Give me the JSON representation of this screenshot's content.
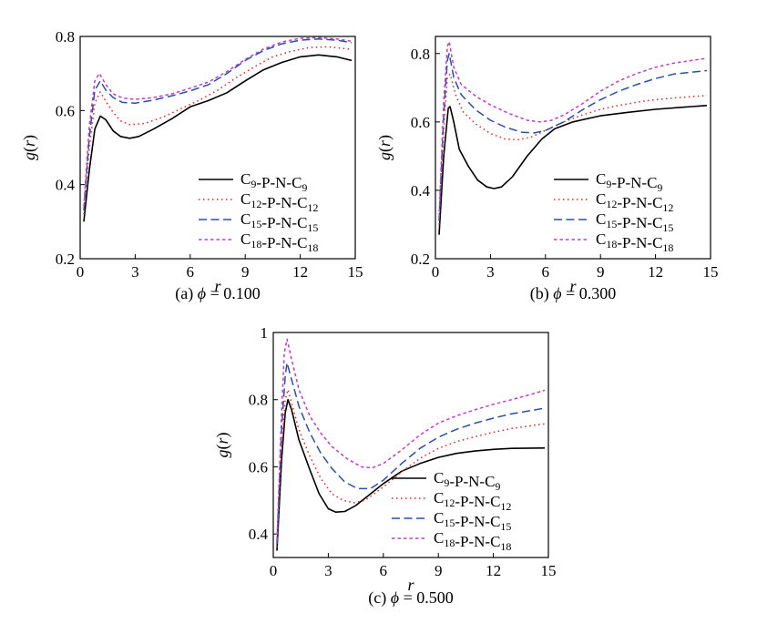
{
  "colors": {
    "C9": "#000000",
    "C12": "#e8231a",
    "C15": "#2a4fa8",
    "C18": "#c23cc8"
  },
  "chart_data": [
    {
      "type": "line",
      "caption": "(a) ϕ = 0.100",
      "xlabel": "r",
      "ylabel": "g(r)",
      "xlim": [
        0,
        15
      ],
      "ylim": [
        0.2,
        0.8
      ],
      "xticks": [
        0,
        3,
        6,
        9,
        12,
        15
      ],
      "yticks": [
        0.2,
        0.4,
        0.6,
        0.8
      ],
      "legend_position": "bottom-right",
      "series": [
        {
          "name": "C9-P-N-C9",
          "key": "C9",
          "style": "solid",
          "points": [
            [
              0.2,
              0.3
            ],
            [
              0.5,
              0.44
            ],
            [
              0.8,
              0.55
            ],
            [
              1.1,
              0.585
            ],
            [
              1.4,
              0.575
            ],
            [
              1.8,
              0.545
            ],
            [
              2.2,
              0.53
            ],
            [
              2.7,
              0.525
            ],
            [
              3.2,
              0.53
            ],
            [
              4,
              0.55
            ],
            [
              5,
              0.578
            ],
            [
              6,
              0.61
            ],
            [
              7,
              0.627
            ],
            [
              8,
              0.648
            ],
            [
              9,
              0.68
            ],
            [
              10,
              0.71
            ],
            [
              11,
              0.73
            ],
            [
              12,
              0.745
            ],
            [
              13,
              0.75
            ],
            [
              14,
              0.745
            ],
            [
              14.8,
              0.735
            ]
          ]
        },
        {
          "name": "C12-P-N-C12",
          "key": "C12",
          "style": "dotted",
          "points": [
            [
              0.2,
              0.32
            ],
            [
              0.5,
              0.5
            ],
            [
              0.8,
              0.62
            ],
            [
              1.1,
              0.65
            ],
            [
              1.4,
              0.625
            ],
            [
              1.8,
              0.595
            ],
            [
              2.2,
              0.572
            ],
            [
              2.7,
              0.562
            ],
            [
              3.5,
              0.565
            ],
            [
              4.5,
              0.582
            ],
            [
              5.5,
              0.605
            ],
            [
              6.5,
              0.628
            ],
            [
              7.5,
              0.655
            ],
            [
              8.5,
              0.688
            ],
            [
              9.5,
              0.718
            ],
            [
              10.5,
              0.745
            ],
            [
              11.5,
              0.76
            ],
            [
              12.5,
              0.77
            ],
            [
              13.5,
              0.772
            ],
            [
              14.8,
              0.765
            ]
          ]
        },
        {
          "name": "C15-P-N-C15",
          "key": "C15",
          "style": "dashed",
          "points": [
            [
              0.2,
              0.33
            ],
            [
              0.5,
              0.53
            ],
            [
              0.8,
              0.655
            ],
            [
              1.1,
              0.68
            ],
            [
              1.4,
              0.655
            ],
            [
              1.8,
              0.635
            ],
            [
              2.3,
              0.622
            ],
            [
              3,
              0.62
            ],
            [
              4,
              0.628
            ],
            [
              5,
              0.64
            ],
            [
              6,
              0.653
            ],
            [
              7,
              0.67
            ],
            [
              8,
              0.7
            ],
            [
              9,
              0.735
            ],
            [
              10,
              0.762
            ],
            [
              11,
              0.78
            ],
            [
              12,
              0.79
            ],
            [
              13,
              0.793
            ],
            [
              14,
              0.79
            ],
            [
              14.8,
              0.783
            ]
          ]
        },
        {
          "name": "C18-P-N-C18",
          "key": "C18",
          "style": "shortdash",
          "points": [
            [
              0.2,
              0.34
            ],
            [
              0.5,
              0.56
            ],
            [
              0.8,
              0.68
            ],
            [
              1.05,
              0.7
            ],
            [
              1.4,
              0.67
            ],
            [
              1.8,
              0.645
            ],
            [
              2.3,
              0.634
            ],
            [
              3,
              0.63
            ],
            [
              4,
              0.635
            ],
            [
              5,
              0.645
            ],
            [
              6,
              0.66
            ],
            [
              7,
              0.677
            ],
            [
              8,
              0.705
            ],
            [
              9,
              0.738
            ],
            [
              10,
              0.766
            ],
            [
              11,
              0.785
            ],
            [
              12,
              0.795
            ],
            [
              13,
              0.797
            ],
            [
              14,
              0.793
            ],
            [
              14.8,
              0.787
            ]
          ]
        }
      ]
    },
    {
      "type": "line",
      "caption": "(b) ϕ = 0.300",
      "xlabel": "r",
      "ylabel": "g(r)",
      "xlim": [
        0,
        15
      ],
      "ylim": [
        0.2,
        0.85
      ],
      "xticks": [
        0,
        3,
        6,
        9,
        12,
        15
      ],
      "yticks": [
        0.2,
        0.4,
        0.6,
        0.8
      ],
      "legend_position": "bottom-right",
      "series": [
        {
          "name": "C9-P-N-C9",
          "key": "C9",
          "style": "solid",
          "points": [
            [
              0.2,
              0.27
            ],
            [
              0.45,
              0.5
            ],
            [
              0.7,
              0.64
            ],
            [
              0.8,
              0.645
            ],
            [
              1.0,
              0.6
            ],
            [
              1.3,
              0.52
            ],
            [
              1.8,
              0.47
            ],
            [
              2.3,
              0.43
            ],
            [
              2.8,
              0.41
            ],
            [
              3.2,
              0.405
            ],
            [
              3.6,
              0.41
            ],
            [
              4.2,
              0.44
            ],
            [
              5,
              0.5
            ],
            [
              5.8,
              0.55
            ],
            [
              6.5,
              0.58
            ],
            [
              7.5,
              0.6
            ],
            [
              9,
              0.618
            ],
            [
              10.5,
              0.628
            ],
            [
              12,
              0.637
            ],
            [
              13.5,
              0.643
            ],
            [
              14.8,
              0.648
            ]
          ]
        },
        {
          "name": "C12-P-N-C12",
          "key": "C12",
          "style": "dotted",
          "points": [
            [
              0.2,
              0.3
            ],
            [
              0.45,
              0.58
            ],
            [
              0.65,
              0.73
            ],
            [
              0.8,
              0.74
            ],
            [
              1.1,
              0.68
            ],
            [
              1.5,
              0.63
            ],
            [
              2.2,
              0.594
            ],
            [
              3,
              0.566
            ],
            [
              3.8,
              0.55
            ],
            [
              4.5,
              0.548
            ],
            [
              5.2,
              0.555
            ],
            [
              6,
              0.575
            ],
            [
              7,
              0.6
            ],
            [
              8,
              0.62
            ],
            [
              9,
              0.637
            ],
            [
              10,
              0.648
            ],
            [
              11,
              0.658
            ],
            [
              12,
              0.665
            ],
            [
              13,
              0.67
            ],
            [
              14.8,
              0.677
            ]
          ]
        },
        {
          "name": "C15-P-N-C15",
          "key": "C15",
          "style": "dashed",
          "points": [
            [
              0.2,
              0.31
            ],
            [
              0.45,
              0.62
            ],
            [
              0.65,
              0.78
            ],
            [
              0.75,
              0.8
            ],
            [
              1.0,
              0.73
            ],
            [
              1.4,
              0.68
            ],
            [
              2.2,
              0.635
            ],
            [
              3,
              0.605
            ],
            [
              3.8,
              0.585
            ],
            [
              4.7,
              0.57
            ],
            [
              5.4,
              0.568
            ],
            [
              6,
              0.575
            ],
            [
              7,
              0.6
            ],
            [
              8,
              0.635
            ],
            [
              9,
              0.665
            ],
            [
              10,
              0.69
            ],
            [
              11,
              0.71
            ],
            [
              12,
              0.727
            ],
            [
              13,
              0.74
            ],
            [
              14.8,
              0.75
            ]
          ]
        },
        {
          "name": "C18-P-N-C18",
          "key": "C18",
          "style": "shortdash",
          "points": [
            [
              0.2,
              0.32
            ],
            [
              0.45,
              0.66
            ],
            [
              0.65,
              0.82
            ],
            [
              0.75,
              0.835
            ],
            [
              1.0,
              0.76
            ],
            [
              1.4,
              0.71
            ],
            [
              2.2,
              0.675
            ],
            [
              3,
              0.65
            ],
            [
              4,
              0.625
            ],
            [
              5,
              0.605
            ],
            [
              5.7,
              0.6
            ],
            [
              6.3,
              0.604
            ],
            [
              7,
              0.62
            ],
            [
              8,
              0.653
            ],
            [
              9,
              0.69
            ],
            [
              10,
              0.72
            ],
            [
              11,
              0.742
            ],
            [
              12,
              0.76
            ],
            [
              13,
              0.772
            ],
            [
              14,
              0.78
            ],
            [
              14.8,
              0.786
            ]
          ]
        }
      ]
    },
    {
      "type": "line",
      "caption": "(c) ϕ = 0.500",
      "xlabel": "r",
      "ylabel": "g(r)",
      "xlim": [
        0,
        15
      ],
      "ylim": [
        0.33,
        1.0
      ],
      "xticks": [
        0,
        3,
        6,
        9,
        12,
        15
      ],
      "yticks": [
        0.4,
        0.6,
        0.8,
        1.0
      ],
      "legend_position": "bottom-right",
      "series": [
        {
          "name": "C9-P-N-C9",
          "key": "C9",
          "style": "solid",
          "points": [
            [
              0.2,
              0.35
            ],
            [
              0.45,
              0.62
            ],
            [
              0.65,
              0.76
            ],
            [
              0.8,
              0.8
            ],
            [
              1.0,
              0.77
            ],
            [
              1.4,
              0.68
            ],
            [
              2,
              0.59
            ],
            [
              2.5,
              0.52
            ],
            [
              3,
              0.475
            ],
            [
              3.4,
              0.465
            ],
            [
              3.9,
              0.467
            ],
            [
              4.5,
              0.485
            ],
            [
              5.2,
              0.515
            ],
            [
              6,
              0.55
            ],
            [
              7,
              0.587
            ],
            [
              8,
              0.61
            ],
            [
              9,
              0.628
            ],
            [
              10,
              0.64
            ],
            [
              11,
              0.647
            ],
            [
              12,
              0.652
            ],
            [
              13,
              0.655
            ],
            [
              14.8,
              0.656
            ]
          ]
        },
        {
          "name": "C12-P-N-C12",
          "key": "C12",
          "style": "dotted",
          "points": [
            [
              0.2,
              0.36
            ],
            [
              0.45,
              0.66
            ],
            [
              0.65,
              0.8
            ],
            [
              0.8,
              0.83
            ],
            [
              1.0,
              0.79
            ],
            [
              1.4,
              0.71
            ],
            [
              2,
              0.63
            ],
            [
              2.6,
              0.565
            ],
            [
              3.2,
              0.52
            ],
            [
              3.8,
              0.5
            ],
            [
              4.4,
              0.493
            ],
            [
              5,
              0.5
            ],
            [
              6,
              0.54
            ],
            [
              7,
              0.585
            ],
            [
              8,
              0.625
            ],
            [
              9,
              0.655
            ],
            [
              10,
              0.675
            ],
            [
              11,
              0.69
            ],
            [
              12,
              0.703
            ],
            [
              13,
              0.714
            ],
            [
              14,
              0.722
            ],
            [
              14.8,
              0.728
            ]
          ]
        },
        {
          "name": "C15-P-N-C15",
          "key": "C15",
          "style": "dashed",
          "points": [
            [
              0.2,
              0.37
            ],
            [
              0.45,
              0.71
            ],
            [
              0.65,
              0.87
            ],
            [
              0.75,
              0.91
            ],
            [
              1.0,
              0.86
            ],
            [
              1.4,
              0.78
            ],
            [
              2,
              0.7
            ],
            [
              2.6,
              0.64
            ],
            [
              3.2,
              0.595
            ],
            [
              3.9,
              0.555
            ],
            [
              4.6,
              0.535
            ],
            [
              5.3,
              0.535
            ],
            [
              6,
              0.56
            ],
            [
              7,
              0.61
            ],
            [
              8,
              0.655
            ],
            [
              9,
              0.688
            ],
            [
              10,
              0.712
            ],
            [
              11,
              0.73
            ],
            [
              12,
              0.745
            ],
            [
              13,
              0.758
            ],
            [
              14,
              0.767
            ],
            [
              14.8,
              0.775
            ]
          ]
        },
        {
          "name": "C18-P-N-C18",
          "key": "C18",
          "style": "shortdash",
          "points": [
            [
              0.2,
              0.38
            ],
            [
              0.45,
              0.76
            ],
            [
              0.6,
              0.94
            ],
            [
              0.75,
              0.98
            ],
            [
              1.0,
              0.92
            ],
            [
              1.4,
              0.83
            ],
            [
              2,
              0.75
            ],
            [
              2.6,
              0.7
            ],
            [
              3.2,
              0.66
            ],
            [
              4,
              0.625
            ],
            [
              4.8,
              0.6
            ],
            [
              5.4,
              0.597
            ],
            [
              6,
              0.61
            ],
            [
              7,
              0.65
            ],
            [
              8,
              0.695
            ],
            [
              9,
              0.73
            ],
            [
              10,
              0.752
            ],
            [
              11,
              0.77
            ],
            [
              12,
              0.786
            ],
            [
              13,
              0.8
            ],
            [
              14,
              0.815
            ],
            [
              14.8,
              0.828
            ]
          ]
        }
      ]
    }
  ]
}
